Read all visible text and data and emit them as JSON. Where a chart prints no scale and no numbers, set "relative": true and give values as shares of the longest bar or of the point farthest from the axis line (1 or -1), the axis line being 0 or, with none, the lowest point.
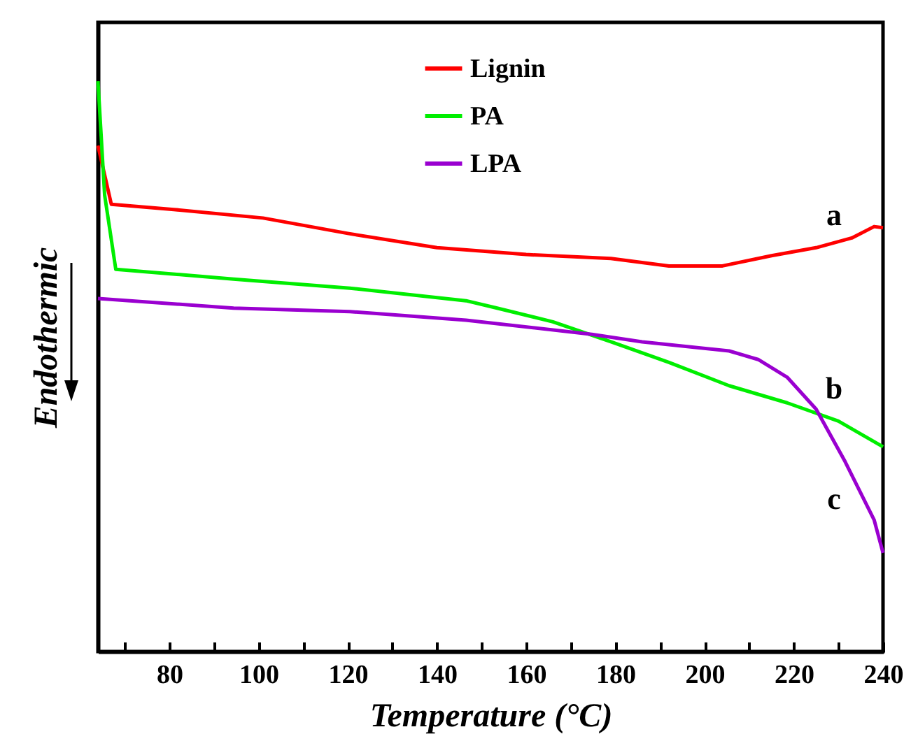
{
  "chart_data": {
    "type": "line",
    "relative": true,
    "xlabel": "Temperature (°C)",
    "ylabel": "Endothermic",
    "legend": "top",
    "xlim": [
      64,
      240
    ],
    "xticks": [
      {
        "value": 70,
        "label": null
      },
      80,
      {
        "value": 90,
        "label": null
      },
      100,
      {
        "value": 110,
        "label": null
      },
      120,
      {
        "value": 130,
        "label": null
      },
      140,
      {
        "value": 150,
        "label": null
      },
      160,
      {
        "value": 170,
        "label": null
      },
      180,
      {
        "value": 190,
        "label": null
      },
      200,
      {
        "value": 210,
        "label": null
      },
      220,
      {
        "value": 230,
        "label": null
      },
      240
    ],
    "series": [
      {
        "name": "Lignin",
        "color": "#ff0000",
        "x": [
          64,
          67,
          81,
          101,
          120,
          140,
          160,
          179,
          192,
          204,
          215,
          225,
          233,
          238,
          240
        ],
        "values": [
          0.887,
          0.784,
          0.775,
          0.76,
          0.733,
          0.708,
          0.696,
          0.689,
          0.676,
          0.676,
          0.694,
          0.708,
          0.725,
          0.745,
          0.743
        ]
      },
      {
        "name": "PA",
        "color": "#00ee00",
        "x": [
          64,
          65.5,
          68,
          94.4,
          120.5,
          146.5,
          153,
          166,
          179,
          192,
          205.5,
          218.5,
          230,
          240
        ],
        "values": [
          1.0,
          0.8,
          0.67,
          0.653,
          0.637,
          0.615,
          0.603,
          0.578,
          0.543,
          0.507,
          0.466,
          0.436,
          0.404,
          0.359
        ]
      },
      {
        "name": "LPA",
        "color": "#9a00d0",
        "x": [
          64,
          94.4,
          120.5,
          146.5,
          174.7,
          186,
          205.5,
          212,
          218.5,
          225,
          231.5,
          238,
          240
        ],
        "values": [
          0.619,
          0.602,
          0.596,
          0.581,
          0.556,
          0.543,
          0.527,
          0.512,
          0.481,
          0.425,
          0.333,
          0.231,
          0.173
        ]
      }
    ],
    "annotations": [
      "a",
      "b",
      "c"
    ]
  }
}
